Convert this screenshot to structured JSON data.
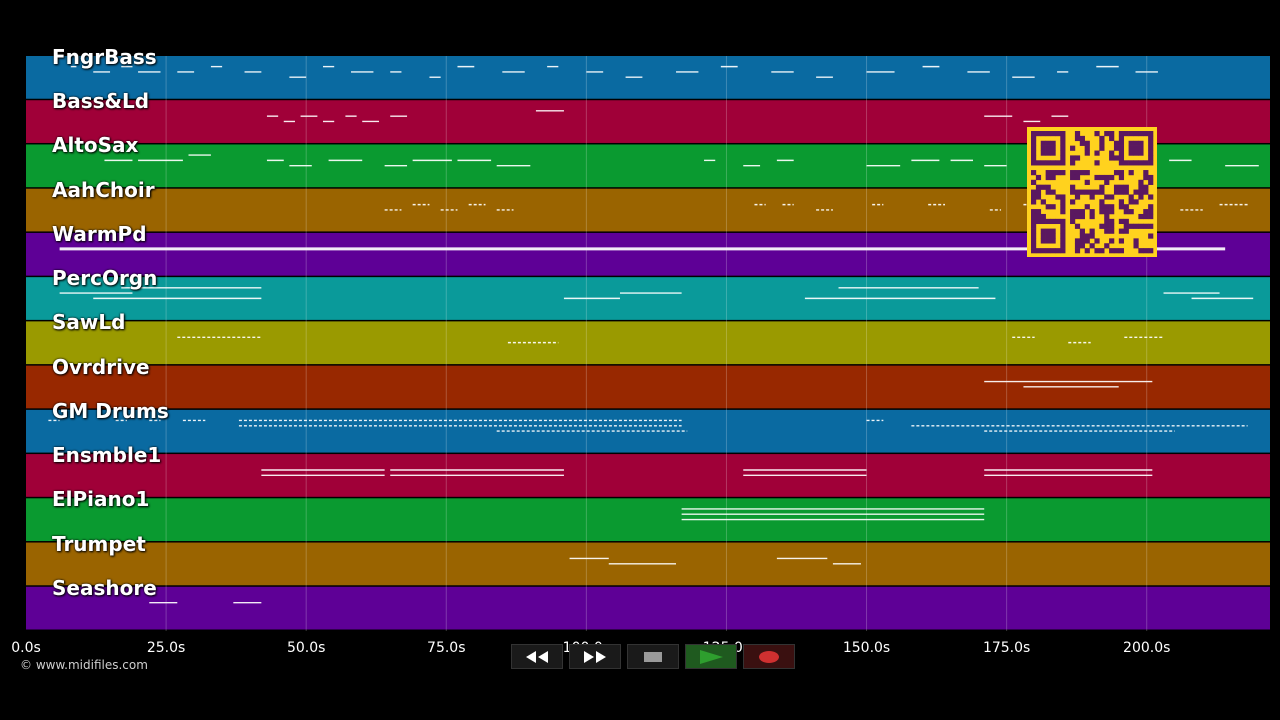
{
  "window": {
    "title": "MIDI piano roll player"
  },
  "tracks": [
    {
      "label": "FngrBass",
      "color": "#0a6aa1",
      "notes": [
        [
          8,
          9,
          3
        ],
        [
          12,
          15,
          2
        ],
        [
          17,
          19,
          3
        ],
        [
          20,
          24,
          2
        ],
        [
          27,
          30,
          2
        ],
        [
          33,
          35,
          3
        ],
        [
          39,
          42,
          2
        ],
        [
          47,
          50,
          1
        ],
        [
          53,
          55,
          3
        ],
        [
          58,
          62,
          2
        ],
        [
          65,
          67,
          2
        ],
        [
          72,
          74,
          1
        ],
        [
          77,
          80,
          3
        ],
        [
          85,
          89,
          2
        ],
        [
          93,
          95,
          3
        ],
        [
          100,
          103,
          2
        ],
        [
          107,
          110,
          1
        ],
        [
          116,
          120,
          2
        ],
        [
          124,
          127,
          3
        ],
        [
          133,
          137,
          2
        ],
        [
          141,
          144,
          1
        ],
        [
          150,
          155,
          2
        ],
        [
          160,
          163,
          3
        ],
        [
          168,
          172,
          2
        ],
        [
          176,
          180,
          1
        ],
        [
          184,
          186,
          2
        ],
        [
          191,
          195,
          3
        ],
        [
          198,
          202,
          2
        ]
      ]
    },
    {
      "label": "Bass&Ld",
      "color": "#a00038",
      "notes": [
        [
          43,
          45,
          2
        ],
        [
          46,
          48,
          1
        ],
        [
          49,
          52,
          2
        ],
        [
          53,
          55,
          1
        ],
        [
          57,
          59,
          2
        ],
        [
          60,
          63,
          1
        ],
        [
          65,
          68,
          2
        ],
        [
          91,
          96,
          3
        ],
        [
          171,
          176,
          2
        ],
        [
          178,
          181,
          1
        ],
        [
          183,
          186,
          2
        ]
      ]
    },
    {
      "label": "AltoSax",
      "color": "#0a9a30",
      "notes": [
        [
          14,
          19,
          2
        ],
        [
          20,
          28,
          2
        ],
        [
          29,
          33,
          3
        ],
        [
          43,
          46,
          2
        ],
        [
          47,
          51,
          1
        ],
        [
          54,
          60,
          2
        ],
        [
          64,
          68,
          1
        ],
        [
          69,
          76,
          2
        ],
        [
          77,
          83,
          2
        ],
        [
          84,
          90,
          1
        ],
        [
          121,
          123,
          2
        ],
        [
          128,
          131,
          1
        ],
        [
          134,
          137,
          2
        ],
        [
          150,
          156,
          1
        ],
        [
          158,
          163,
          2
        ],
        [
          165,
          169,
          2
        ],
        [
          171,
          175,
          1
        ],
        [
          179,
          181,
          2
        ],
        [
          204,
          208,
          2
        ],
        [
          214,
          220,
          1
        ]
      ]
    },
    {
      "label": "AahChoir",
      "color": "#9a6400",
      "notes": [
        [
          64,
          67,
          1
        ],
        [
          69,
          72,
          2
        ],
        [
          74,
          77,
          1
        ],
        [
          79,
          82,
          2
        ],
        [
          84,
          87,
          1
        ],
        [
          130,
          132,
          2
        ],
        [
          135,
          137,
          2
        ],
        [
          141,
          144,
          1
        ],
        [
          151,
          153,
          2
        ],
        [
          161,
          164,
          2
        ],
        [
          172,
          174,
          1
        ],
        [
          178,
          180,
          2
        ],
        [
          206,
          210,
          1
        ],
        [
          213,
          218,
          2
        ]
      ]
    },
    {
      "label": "WarmPd",
      "color": "#5e0096",
      "notes": [
        [
          6,
          214,
          2
        ]
      ]
    },
    {
      "label": "PercOrgn",
      "color": "#0a9a9a",
      "notes": [
        [
          6,
          19,
          2
        ],
        [
          12,
          42,
          1
        ],
        [
          17,
          42,
          3
        ],
        [
          96,
          106,
          1
        ],
        [
          106,
          117,
          2
        ],
        [
          139,
          173,
          1
        ],
        [
          145,
          170,
          3
        ],
        [
          203,
          213,
          2
        ],
        [
          208,
          219,
          1
        ]
      ]
    },
    {
      "label": "SawLd",
      "color": "#9a9a00",
      "notes": [
        [
          27,
          42,
          2
        ],
        [
          86,
          95,
          1
        ],
        [
          176,
          180,
          2
        ],
        [
          186,
          190,
          1
        ],
        [
          196,
          203,
          2
        ]
      ]
    },
    {
      "label": "Ovrdrive",
      "color": "#982800",
      "notes": [
        [
          171,
          201,
          2
        ],
        [
          178,
          195,
          1
        ]
      ]
    },
    {
      "label": "GM Drums",
      "color": "#0a6aa1",
      "notes": [
        [
          4,
          6,
          3
        ],
        [
          16,
          18,
          3
        ],
        [
          22,
          24,
          3
        ],
        [
          28,
          32,
          3
        ],
        [
          38,
          117,
          2
        ],
        [
          38,
          117,
          3
        ],
        [
          84,
          118,
          1
        ],
        [
          150,
          153,
          3
        ],
        [
          158,
          175,
          2
        ],
        [
          171,
          205,
          1
        ],
        [
          175,
          218,
          2
        ]
      ]
    },
    {
      "label": "Ensmble1",
      "color": "#a00038",
      "notes": [
        [
          42,
          64,
          1
        ],
        [
          42,
          64,
          2
        ],
        [
          65,
          96,
          1
        ],
        [
          65,
          96,
          2
        ],
        [
          128,
          150,
          1
        ],
        [
          128,
          150,
          2
        ],
        [
          171,
          201,
          1
        ],
        [
          171,
          201,
          2
        ]
      ]
    },
    {
      "label": "ElPiano1",
      "color": "#0a9a30",
      "notes": [
        [
          117,
          171,
          1
        ],
        [
          117,
          171,
          2
        ],
        [
          117,
          171,
          3
        ]
      ]
    },
    {
      "label": "Trumpet",
      "color": "#9a6400",
      "notes": [
        [
          97,
          104,
          2
        ],
        [
          104,
          116,
          1
        ],
        [
          134,
          143,
          2
        ],
        [
          144,
          149,
          1
        ]
      ]
    },
    {
      "label": "Seashore",
      "color": "#5e0096",
      "notes": [
        [
          22,
          27,
          2
        ],
        [
          37,
          42,
          2
        ]
      ]
    }
  ],
  "timeline": {
    "max_seconds": 222,
    "ticks": [
      {
        "value": 0,
        "label": "0.0s"
      },
      {
        "value": 25,
        "label": "25.0s"
      },
      {
        "value": 50,
        "label": "50.0s"
      },
      {
        "value": 75,
        "label": "75.0s"
      },
      {
        "value": 100,
        "label": "100.0s"
      },
      {
        "value": 125,
        "label": "125.0s"
      },
      {
        "value": 150,
        "label": "150.0s"
      },
      {
        "value": 175,
        "label": "175.0s"
      },
      {
        "value": 200,
        "label": "200.0s"
      }
    ]
  },
  "copyright": "© www.midifiles.com",
  "transport": {
    "rewind": "rewind-icon",
    "fast_forward": "fast-forward-icon",
    "stop": "stop-icon",
    "play": "play-icon",
    "record": "record-icon",
    "play_color": "#2e9e2e",
    "record_color": "#d03030"
  },
  "qr": {
    "bg": "#ffd21e",
    "fg": "#5a1860"
  },
  "colors": {
    "note": "#ffffff",
    "grid": "#ffffff"
  }
}
